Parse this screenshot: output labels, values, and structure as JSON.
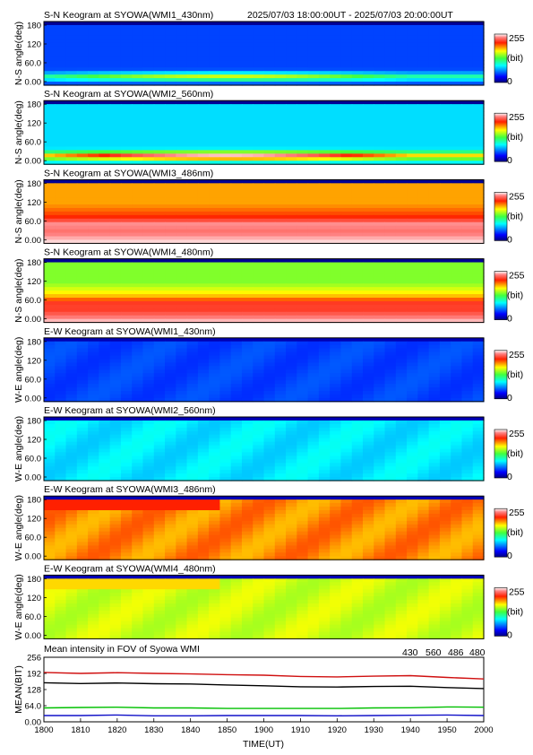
{
  "header": {
    "time_range": "2025/07/03 18:00:00UT - 2025/07/03 20:00:00UT"
  },
  "colorbar": {
    "max": "255",
    "unit": "(bit)",
    "min": "0"
  },
  "keogram_panels": [
    {
      "title": "S-N Keogram at SYOWA(WMI1_430nm)",
      "ylabel": "N-S angle(deg)",
      "yticks": [
        "180",
        "120",
        "60.0",
        "0.00"
      ],
      "base": 0.18,
      "peak": 0.62,
      "profile": "low_band"
    },
    {
      "title": "S-N Keogram at SYOWA(WMI2_560nm)",
      "ylabel": "N-S angle(deg)",
      "yticks": [
        "180",
        "120",
        "60.0",
        "0.00"
      ],
      "base": 0.32,
      "peak": 0.98,
      "profile": "low_band"
    },
    {
      "title": "S-N Keogram at SYOWA(WMI3_486nm)",
      "ylabel": "N-S angle(deg)",
      "yticks": [
        "180",
        "120",
        "60.0",
        "0.00"
      ],
      "base": 0.72,
      "peak": 0.99,
      "profile": "bright_bottom"
    },
    {
      "title": "S-N Keogram at SYOWA(WMI4_480nm)",
      "ylabel": "N-S angle(deg)",
      "yticks": [
        "180",
        "120",
        "60.0",
        "0.00"
      ],
      "base": 0.55,
      "peak": 0.98,
      "profile": "bright_bottom"
    },
    {
      "title": "E-W Keogram at SYOWA(WMI1_430nm)",
      "ylabel": "W-E angle(deg)",
      "yticks": [
        "180",
        "120",
        "60.0",
        "0.00"
      ],
      "base": 0.16,
      "peak": 0.2,
      "profile": "flat"
    },
    {
      "title": "E-W Keogram at SYOWA(WMI2_560nm)",
      "ylabel": "W-E angle(deg)",
      "yticks": [
        "180",
        "120",
        "60.0",
        "0.00"
      ],
      "base": 0.3,
      "peak": 0.36,
      "profile": "flat"
    },
    {
      "title": "E-W Keogram at SYOWA(WMI3_486nm)",
      "ylabel": "W-E angle(deg)",
      "yticks": [
        "180",
        "120",
        "60.0",
        "0.00"
      ],
      "base": 0.7,
      "peak": 0.78,
      "profile": "flat"
    },
    {
      "title": "E-W Keogram at SYOWA(WMI4_480nm)",
      "ylabel": "W-E angle(deg)",
      "yticks": [
        "180",
        "120",
        "60.0",
        "0.00"
      ],
      "base": 0.58,
      "peak": 0.64,
      "profile": "flat"
    }
  ],
  "chart_data": {
    "type": "line",
    "title": "Mean intensity in FOV of Syowa WMI",
    "xlabel": "TIME(UT)",
    "ylabel": "MEAN(BIT)",
    "ylim": [
      0,
      256
    ],
    "xlim": [
      1800,
      2000
    ],
    "x_ticks": [
      "1800",
      "1810",
      "1820",
      "1830",
      "1840",
      "1850",
      "1900",
      "1910",
      "1920",
      "1930",
      "1940",
      "1950",
      "2000"
    ],
    "y_ticks": [
      "256",
      "192",
      "128",
      "64.0",
      "0.00"
    ],
    "x": [
      1800,
      1810,
      1820,
      1830,
      1840,
      1850,
      1900,
      1910,
      1920,
      1930,
      1940,
      1950,
      2000
    ],
    "series": [
      {
        "name": "430",
        "color": "#1010c8",
        "values": [
          25,
          25,
          27,
          24,
          24,
          25,
          25,
          25,
          24,
          25,
          26,
          27,
          25
        ]
      },
      {
        "name": "560",
        "color": "#00c000",
        "values": [
          55,
          57,
          58,
          55,
          55,
          53,
          53,
          53,
          53,
          55,
          56,
          59,
          58
        ]
      },
      {
        "name": "486",
        "color": "#d01010",
        "values": [
          196,
          192,
          195,
          192,
          190,
          187,
          185,
          180,
          178,
          181,
          183,
          176,
          170
        ]
      },
      {
        "name": "480",
        "color": "#000000",
        "values": [
          155,
          152,
          154,
          151,
          150,
          146,
          143,
          139,
          138,
          140,
          141,
          136,
          132
        ]
      }
    ]
  }
}
